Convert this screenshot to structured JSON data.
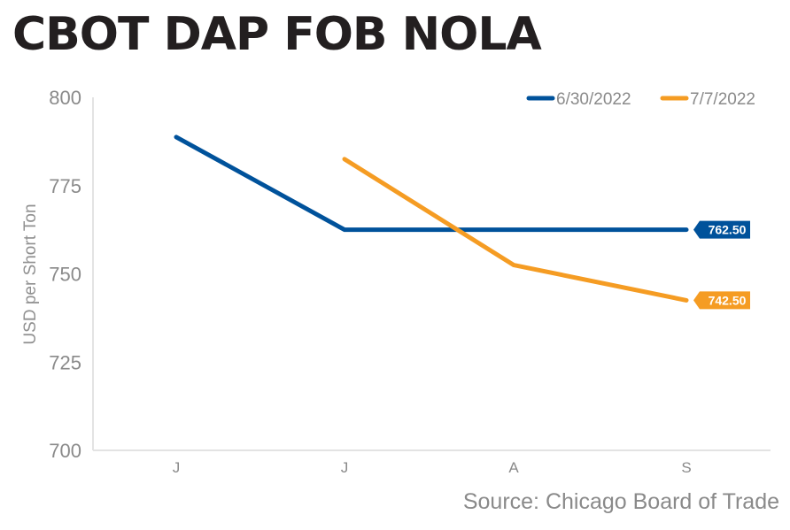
{
  "title": "CBOT DAP FOB NOLA",
  "source": "Source: Chicago Board of Trade",
  "chart_data": {
    "type": "line",
    "title": "CBOT DAP FOB NOLA",
    "xlabel": "",
    "ylabel": "USD per Short Ton",
    "categories": [
      "J",
      "J",
      "A",
      "S"
    ],
    "ylim": [
      700,
      800
    ],
    "yticks": [
      800,
      775,
      750,
      725,
      700
    ],
    "grid": false,
    "legend_position": "top-right",
    "series": [
      {
        "name": "6/30/2022",
        "color": "#00529b",
        "values": [
          788.75,
          762.5,
          762.5,
          762.5
        ],
        "end_label": "762.50"
      },
      {
        "name": "7/7/2022",
        "color": "#f59c23",
        "values": [
          null,
          782.5,
          752.5,
          742.5
        ],
        "end_label": "742.50"
      }
    ]
  }
}
